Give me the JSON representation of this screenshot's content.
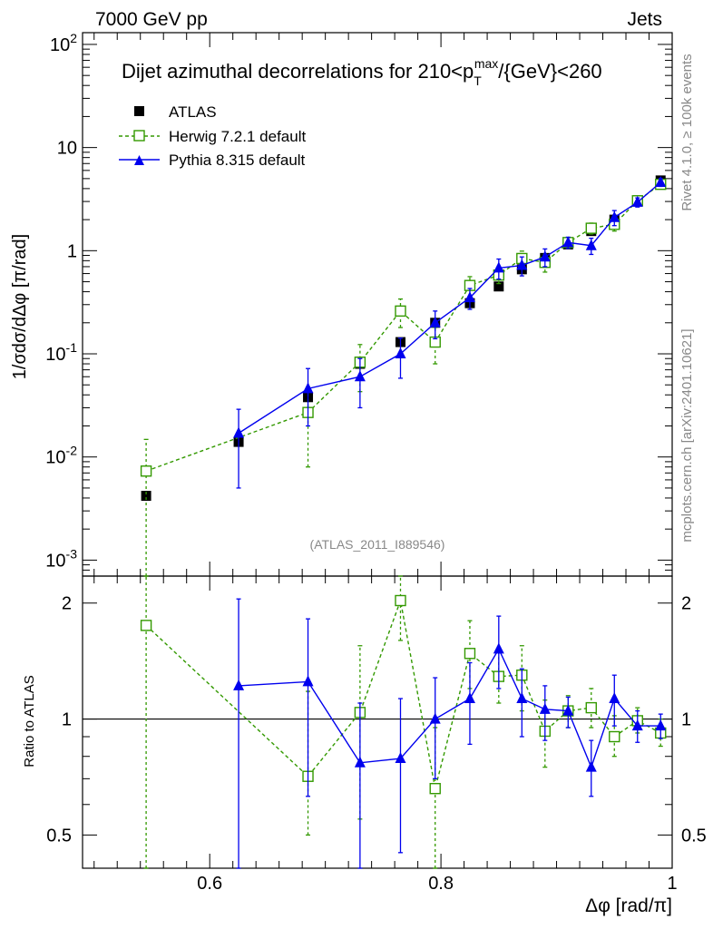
{
  "header": {
    "left": "7000 GeV pp",
    "right": "Jets"
  },
  "side_labels": {
    "rivet": "Rivet 4.1.0, ≥ 100k events",
    "mcplots": "mcplots.cern.ch [arXiv:2401.10621]"
  },
  "analysis_id": "(ATLAS_2011_I889546)",
  "chart_data": [
    {
      "panel": "main",
      "type": "scatter",
      "title_parts": {
        "prefix": "Dijet azimuthal decorrelations for 210<p",
        "sub": "T",
        "sup": "max",
        "suffix": "/{GeV}<260"
      },
      "ylabel": "1/σdσ/dΔφ [π/rad]",
      "yscale": "log",
      "ylim": [
        0.0007,
        130
      ],
      "xlim": [
        0.49,
        1.0
      ],
      "y_ticks": [
        {
          "base": "10",
          "exp": "-3",
          "value": 0.001
        },
        {
          "base": "10",
          "exp": "-2",
          "value": 0.01
        },
        {
          "base": "10",
          "exp": "-1",
          "value": 0.1
        },
        {
          "base": "1",
          "exp": "",
          "value": 1
        },
        {
          "base": "10",
          "exp": "",
          "value": 10
        },
        {
          "base": "10",
          "exp": "2",
          "value": 100
        }
      ],
      "legend": [
        "ATLAS",
        "Herwig 7.2.1 default",
        "Pythia 8.315 default"
      ],
      "series": [
        {
          "name": "ATLAS",
          "color": "#000000",
          "marker": "filled-square",
          "x": [
            0.545,
            0.625,
            0.685,
            0.73,
            0.765,
            0.795,
            0.825,
            0.85,
            0.87,
            0.89,
            0.91,
            0.93,
            0.95,
            0.97,
            0.99
          ],
          "y": [
            0.0042,
            0.014,
            0.038,
            0.08,
            0.13,
            0.2,
            0.31,
            0.45,
            0.66,
            0.85,
            1.15,
            1.55,
            2.0,
            3.0,
            4.8
          ]
        },
        {
          "name": "Herwig 7.2.1 default",
          "color": "#339900",
          "marker": "open-square",
          "dash": true,
          "x": [
            0.545,
            0.685,
            0.73,
            0.765,
            0.795,
            0.825,
            0.85,
            0.87,
            0.89,
            0.91,
            0.93,
            0.95,
            0.97,
            0.99
          ],
          "y": [
            0.0073,
            0.027,
            0.083,
            0.26,
            0.13,
            0.46,
            0.58,
            0.84,
            0.77,
            1.2,
            1.65,
            1.8,
            3.05,
            4.4
          ],
          "yerr": [
            0.0075,
            0.019,
            0.04,
            0.08,
            0.05,
            0.1,
            0.1,
            0.15,
            0.15,
            0.15,
            0.2,
            0.25,
            0.3,
            0.4
          ]
        },
        {
          "name": "Pythia 8.315 default",
          "color": "#0000ee",
          "marker": "filled-triangle",
          "x": [
            0.625,
            0.685,
            0.73,
            0.765,
            0.795,
            0.825,
            0.85,
            0.87,
            0.89,
            0.91,
            0.93,
            0.95,
            0.97,
            0.99
          ],
          "y": [
            0.017,
            0.046,
            0.06,
            0.1,
            0.2,
            0.35,
            0.68,
            0.72,
            0.87,
            1.2,
            1.12,
            2.1,
            2.95,
            4.6
          ],
          "yerr": [
            0.012,
            0.026,
            0.03,
            0.042,
            0.06,
            0.08,
            0.15,
            0.15,
            0.17,
            0.15,
            0.2,
            0.35,
            0.3,
            0.4
          ]
        }
      ]
    },
    {
      "panel": "ratio",
      "type": "scatter",
      "ylabel": "Ratio to ATLAS",
      "xlabel": "Δφ [rad/π]",
      "yscale": "log",
      "ylim": [
        0.41,
        2.35
      ],
      "xlim": [
        0.49,
        1.0
      ],
      "y_ticks": [
        0.5,
        1,
        2
      ],
      "x_ticks": [
        0.6,
        0.8,
        1
      ],
      "reference_line": 1,
      "series": [
        {
          "name": "Herwig 7.2.1 default",
          "color": "#339900",
          "marker": "open-square",
          "dash": true,
          "x": [
            0.545,
            0.685,
            0.73,
            0.765,
            0.795,
            0.825,
            0.85,
            0.87,
            0.89,
            0.91,
            0.93,
            0.95,
            0.97,
            0.99
          ],
          "y": [
            1.75,
            0.71,
            1.04,
            2.03,
            0.66,
            1.48,
            1.29,
            1.3,
            0.93,
            1.05,
            1.07,
            0.9,
            0.99,
            0.92
          ],
          "ylo": [
            0.41,
            0.5,
            0.55,
            1.6,
            0.41,
            1.2,
            1.1,
            1.05,
            0.75,
            0.95,
            0.95,
            0.8,
            0.92,
            0.85
          ],
          "yhi": [
            2.35,
            1.18,
            1.55,
            2.35,
            0.95,
            1.8,
            1.5,
            1.55,
            1.12,
            1.15,
            1.2,
            1.02,
            1.07,
            1.0
          ]
        },
        {
          "name": "Pythia 8.315 default",
          "color": "#0000ee",
          "marker": "filled-triangle",
          "x": [
            0.625,
            0.685,
            0.73,
            0.765,
            0.795,
            0.825,
            0.85,
            0.87,
            0.89,
            0.91,
            0.93,
            0.95,
            0.97,
            0.99
          ],
          "y": [
            1.22,
            1.25,
            0.77,
            0.79,
            1.0,
            1.13,
            1.52,
            1.13,
            1.06,
            1.05,
            0.75,
            1.13,
            0.96,
            0.96
          ],
          "ylo": [
            0.41,
            0.63,
            0.41,
            0.45,
            0.7,
            0.86,
            1.2,
            0.9,
            0.88,
            0.95,
            0.63,
            0.96,
            0.87,
            0.89
          ],
          "yhi": [
            2.05,
            1.82,
            1.1,
            1.13,
            1.28,
            1.4,
            1.85,
            1.35,
            1.22,
            1.14,
            0.88,
            1.3,
            1.05,
            1.03
          ]
        }
      ]
    }
  ]
}
